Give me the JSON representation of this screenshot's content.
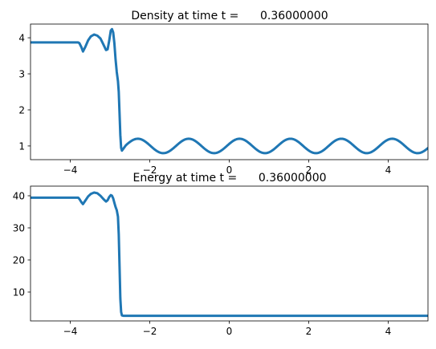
{
  "chart_data": [
    {
      "type": "line",
      "title": "Density at time t =      0.36000000",
      "xlabel": "",
      "ylabel": "",
      "xlim": [
        -5,
        5
      ],
      "ylim": [
        0.62,
        4.38
      ],
      "xticks": [
        -4,
        -2,
        0,
        2,
        4
      ],
      "xtick_labels": [
        "−4",
        "−2",
        "0",
        "2",
        "4"
      ],
      "yticks": [
        1,
        2,
        3,
        4
      ],
      "ytick_labels": [
        "1",
        "2",
        "3",
        "4"
      ],
      "grid": false,
      "series": [
        {
          "color": "#1f77b4",
          "x": [
            -5,
            -3.8,
            -3.77,
            -3.72,
            -3.68,
            -3.62,
            -3.55,
            -3.48,
            -3.4,
            -3.32,
            -3.24,
            -3.16,
            -3.1,
            -3.06,
            -3.02,
            -2.98,
            -2.95,
            -2.92,
            -2.89,
            -2.86,
            -2.83,
            -2.8,
            -2.78,
            -2.76,
            -2.74,
            -2.72,
            -2.7,
            -2.66,
            -2.62
          ],
          "y": [
            3.87,
            3.87,
            3.85,
            3.74,
            3.62,
            3.75,
            3.93,
            4.04,
            4.09,
            4.06,
            3.98,
            3.8,
            3.66,
            3.68,
            3.92,
            4.2,
            4.24,
            4.15,
            3.85,
            3.4,
            3.05,
            2.8,
            2.5,
            1.9,
            1.3,
            0.95,
            0.87,
            0.93,
            0.99
          ],
          "oscillation": {
            "x_start": -2.62,
            "x_end": 5,
            "mean": 1.0,
            "amplitude": 0.2,
            "period": 1.28
          }
        }
      ]
    },
    {
      "type": "line",
      "title": "Energy at time t =      0.36000000",
      "xlabel": "",
      "ylabel": "",
      "xlim": [
        -5,
        5
      ],
      "ylim": [
        1.0,
        43.0
      ],
      "xticks": [
        -4,
        -2,
        0,
        2,
        4
      ],
      "xtick_labels": [
        "−4",
        "−2",
        "0",
        "2",
        "4"
      ],
      "yticks": [
        10,
        20,
        30,
        40
      ],
      "ytick_labels": [
        "10",
        "20",
        "30",
        "40"
      ],
      "grid": false,
      "series": [
        {
          "color": "#1f77b4",
          "x": [
            -5,
            -3.8,
            -3.77,
            -3.72,
            -3.68,
            -3.62,
            -3.55,
            -3.48,
            -3.4,
            -3.32,
            -3.24,
            -3.16,
            -3.1,
            -3.06,
            -3.02,
            -2.98,
            -2.95,
            -2.92,
            -2.89,
            -2.86,
            -2.83,
            -2.8,
            -2.78,
            -2.76,
            -2.74,
            -2.72,
            -2.7,
            -2.66,
            -2.6,
            5
          ],
          "y": [
            39.4,
            39.4,
            39.0,
            38.0,
            37.4,
            38.5,
            39.8,
            40.6,
            41.0,
            40.8,
            40.0,
            38.9,
            38.2,
            38.6,
            39.6,
            40.2,
            40.0,
            39.2,
            37.8,
            36.5,
            35.5,
            33.5,
            28.0,
            18.0,
            8.0,
            3.8,
            2.7,
            2.6,
            2.6,
            2.6
          ]
        }
      ]
    }
  ]
}
